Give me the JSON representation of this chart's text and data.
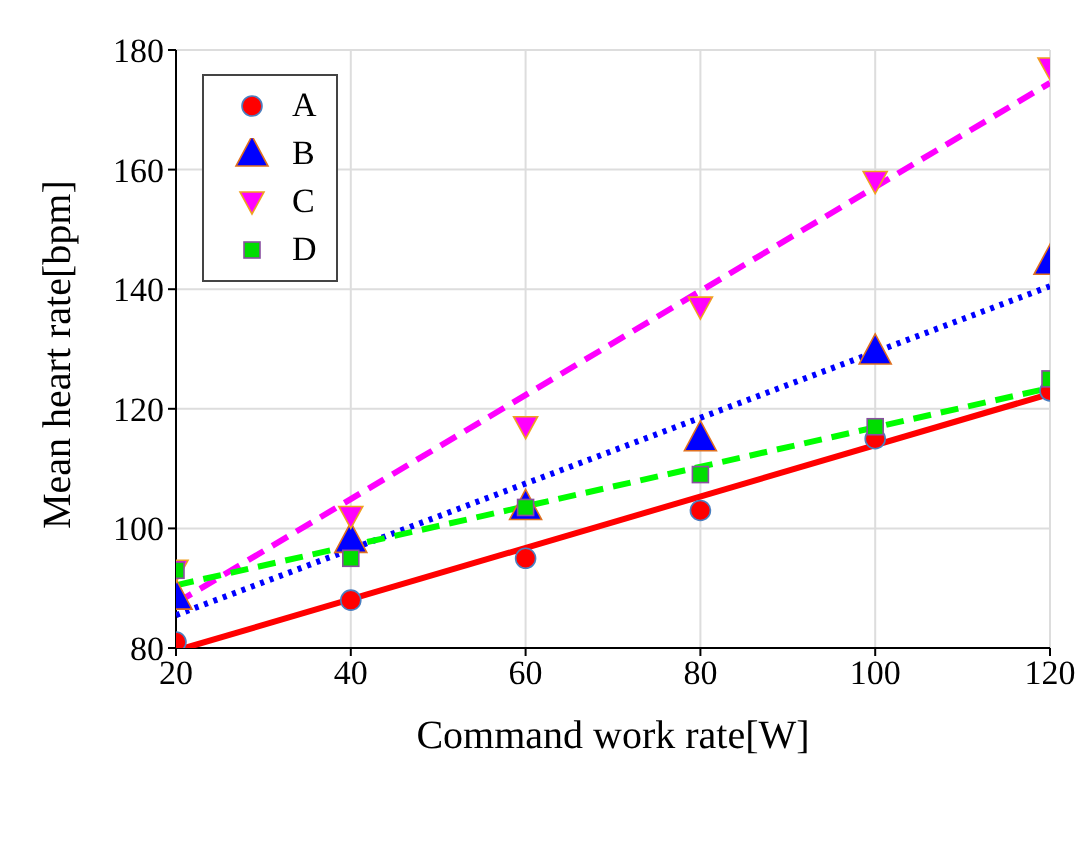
{
  "chart_data": {
    "type": "scatter",
    "xlabel": "Command work rate[W]",
    "ylabel": "Mean heart rate[bpm]",
    "x": [
      20,
      40,
      60,
      80,
      100,
      120
    ],
    "series": [
      {
        "name": "A",
        "color": "#ff0000",
        "marker": "circle",
        "values": [
          81,
          88,
          95,
          103,
          115,
          123
        ]
      },
      {
        "name": "B",
        "color": "#0000ff",
        "marker": "triangle",
        "values": [
          88.5,
          98,
          103.5,
          115,
          129.5,
          144.5
        ]
      },
      {
        "name": "C",
        "color": "#ff00ff",
        "marker": "triangle-down",
        "values": [
          93,
          102,
          117,
          137,
          158,
          177
        ]
      },
      {
        "name": "D",
        "color": "#00dd00",
        "marker": "square",
        "values": [
          93,
          95,
          103.5,
          109,
          117,
          125
        ]
      },
      {
        "type": "line",
        "color": "#ff0000",
        "line_style": "solid",
        "x": [
          21,
          120
        ],
        "values": [
          80,
          122.5
        ]
      },
      {
        "type": "line",
        "color": "#0000ff",
        "line_style": "dotted",
        "x": [
          20,
          120
        ],
        "values": [
          85.5,
          140.5
        ]
      },
      {
        "type": "line",
        "color": "#ff00ff",
        "line_style": "dashed",
        "x": [
          20,
          120
        ],
        "values": [
          87.5,
          174.5
        ]
      },
      {
        "type": "line",
        "color": "#00ff00",
        "line_style": "dashed",
        "x": [
          20,
          120
        ],
        "values": [
          90.5,
          123.5
        ]
      }
    ],
    "xlim": [
      20,
      120
    ],
    "xticks": [
      20,
      40,
      60,
      80,
      100,
      120
    ],
    "ylim": [
      80,
      180
    ],
    "yticks": [
      80,
      100,
      120,
      140,
      160,
      180
    ],
    "grid": true,
    "legend": "top left"
  }
}
